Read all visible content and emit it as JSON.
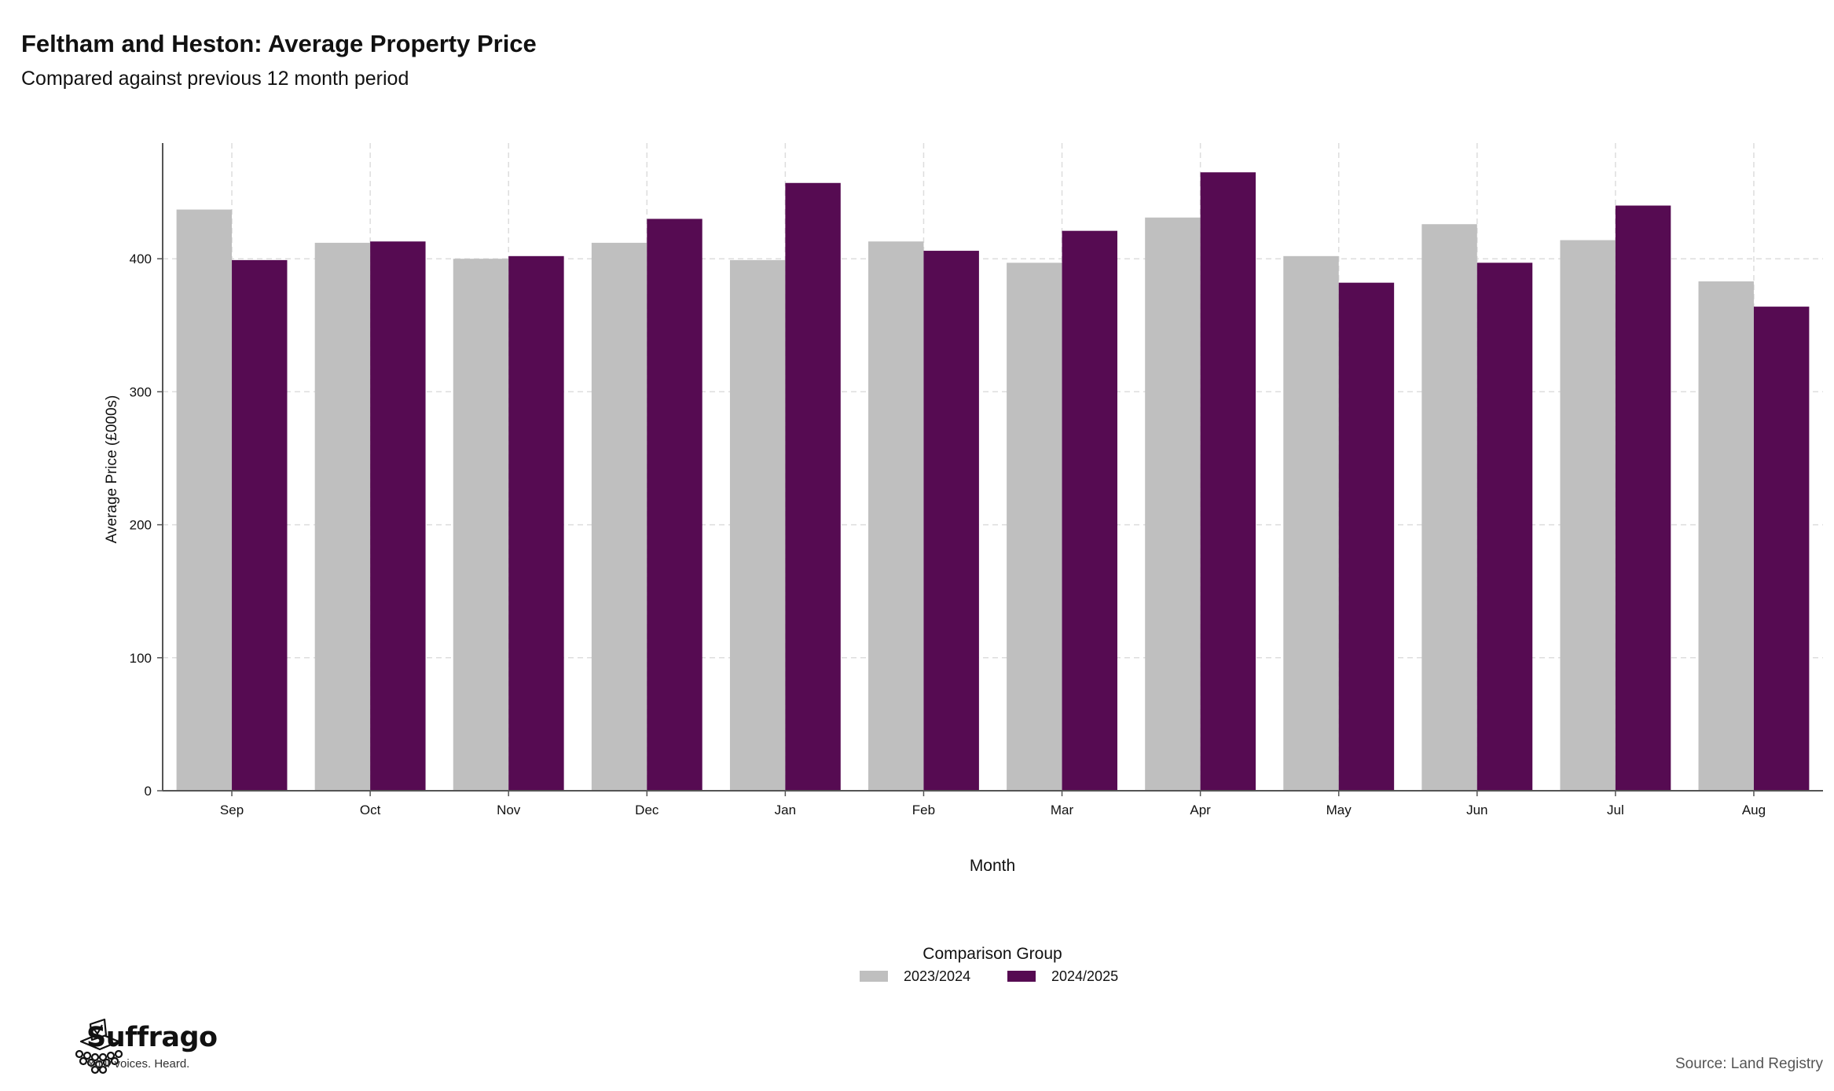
{
  "header": {
    "title": "Feltham and Heston: Average Property Price",
    "subtitle": "Compared against previous 12 month period"
  },
  "chart_data": {
    "type": "bar",
    "title": "Feltham and Heston: Average Property Price",
    "subtitle": "Compared against previous 12 month period",
    "xlabel": "Month",
    "ylabel": "Average Price (£000s)",
    "categories": [
      "Sep",
      "Oct",
      "Nov",
      "Dec",
      "Jan",
      "Feb",
      "Mar",
      "Apr",
      "May",
      "Jun",
      "Jul",
      "Aug"
    ],
    "series": [
      {
        "name": "2023/2024",
        "color": "#bfbfbf",
        "values": [
          437,
          412,
          400,
          412,
          399,
          413,
          397,
          431,
          402,
          426,
          414,
          383
        ]
      },
      {
        "name": "2024/2025",
        "color": "#560b52",
        "values": [
          399,
          413,
          402,
          430,
          457,
          406,
          421,
          465,
          382,
          397,
          440,
          364
        ]
      }
    ],
    "yticks": [
      0,
      100,
      200,
      300,
      400
    ],
    "ylim": [
      0,
      487
    ],
    "grid": true,
    "legend": {
      "title": "Comparison Group",
      "position": "bottom"
    }
  },
  "footer": {
    "brand_name": "Suffrago",
    "brand_tagline": "Your voices. Heard.",
    "source": "Source: Land Registry"
  },
  "icons": {
    "logo": "ballot-box-icon"
  }
}
